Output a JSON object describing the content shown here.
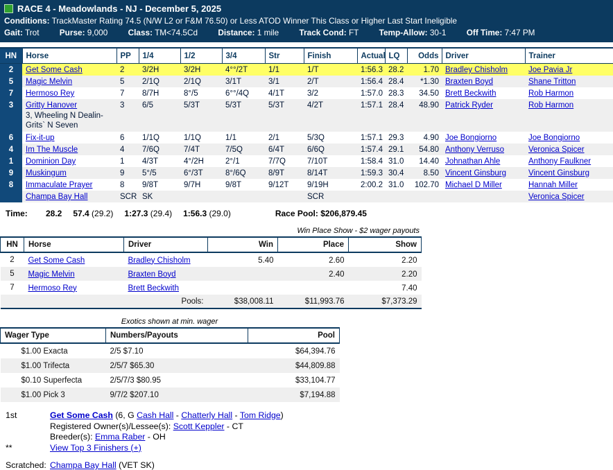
{
  "colors": {
    "banner_bg": "#0C3A5F",
    "hn_column_bg": "#11497A",
    "winner_highlight": "#FFFF66",
    "alt_row": "#EFEFEF",
    "link": "#0000CC",
    "race_icon_green": "#2FA12F"
  },
  "banner": {
    "title": "RACE 4 - Meadowlands - NJ - December 5, 2025",
    "conditions_label": "Conditions:",
    "conditions": "TrackMaster Rating 74.5 (N/W L2 or F&M 76.50) or Less ATOD Winner This Class or Higher Last Start Ineligible",
    "info": [
      {
        "label": "Gait:",
        "value": "Trot"
      },
      {
        "label": "Purse:",
        "value": "9,000"
      },
      {
        "label": "Class:",
        "value": "TM<74.5Cd"
      },
      {
        "label": "Distance:",
        "value": "1 mile"
      },
      {
        "label": "Track Cond:",
        "value": "FT"
      },
      {
        "label": "Temp-Allow:",
        "value": "30-1"
      },
      {
        "label": "Off Time:",
        "value": "7:47 PM"
      }
    ]
  },
  "results": {
    "headers": {
      "hn": "HN",
      "horse": "Horse",
      "pp": "PP",
      "q1": "1/4",
      "q2": "1/2",
      "q3": "3/4",
      "str": "Str",
      "finish": "Finish",
      "actual": "Actual",
      "lq": "LQ",
      "odds": "Odds",
      "driver": "Driver",
      "trainer": "Trainer"
    },
    "rows": [
      {
        "hn": "2",
        "horse": "Get Some Cash",
        "note": "",
        "pp": "2",
        "q1": "3/2H",
        "q2": "3/2H",
        "q3": "4°°/2T",
        "str": "1/1",
        "finish": "1/T",
        "actual": "1:56.3",
        "lq": "28.2",
        "odds": "1.70",
        "driver": "Bradley Chisholm",
        "trainer": "Joe Pavia Jr"
      },
      {
        "hn": "5",
        "horse": "Magic Melvin",
        "note": "",
        "pp": "5",
        "q1": "2/1Q",
        "q2": "2/1Q",
        "q3": "3/1T",
        "str": "3/1",
        "finish": "2/T",
        "actual": "1:56.4",
        "lq": "28.4",
        "odds": "*1.30",
        "driver": "Braxten Boyd",
        "trainer": "Shane Tritton"
      },
      {
        "hn": "7",
        "horse": "Hermoso Rey",
        "note": "",
        "pp": "7",
        "q1": "8/7H",
        "q2": "8°/5",
        "q3": "6°°/4Q",
        "str": "4/1T",
        "finish": "3/2",
        "actual": "1:57.0",
        "lq": "28.3",
        "odds": "34.50",
        "driver": "Brett Beckwith",
        "trainer": "Rob Harmon"
      },
      {
        "hn": "3",
        "horse": "Gritty Hanover",
        "note": "3, Wheeling N Dealin-Grits` N Seven",
        "pp": "3",
        "q1": "6/5",
        "q2": "5/3T",
        "q3": "5/3T",
        "str": "5/3T",
        "finish": "4/2T",
        "actual": "1:57.1",
        "lq": "28.4",
        "odds": "48.90",
        "driver": "Patrick Ryder",
        "trainer": "Rob Harmon"
      },
      {
        "hn": "6",
        "horse": "Fix-it-up",
        "note": "",
        "pp": "6",
        "q1": "1/1Q",
        "q2": "1/1Q",
        "q3": "1/1",
        "str": "2/1",
        "finish": "5/3Q",
        "actual": "1:57.1",
        "lq": "29.3",
        "odds": "4.90",
        "driver": "Joe Bongiorno",
        "trainer": "Joe Bongiorno"
      },
      {
        "hn": "4",
        "horse": "Im The Muscle",
        "note": "",
        "pp": "4",
        "q1": "7/6Q",
        "q2": "7/4T",
        "q3": "7/5Q",
        "str": "6/4T",
        "finish": "6/6Q",
        "actual": "1:57.4",
        "lq": "29.1",
        "odds": "54.80",
        "driver": "Anthony Verruso",
        "trainer": "Veronica Spicer"
      },
      {
        "hn": "1",
        "horse": "Dominion Day",
        "note": "",
        "pp": "1",
        "q1": "4/3T",
        "q2": "4°/2H",
        "q3": "2°/1",
        "str": "7/7Q",
        "finish": "7/10T",
        "actual": "1:58.4",
        "lq": "31.0",
        "odds": "14.40",
        "driver": "Johnathan Ahle",
        "trainer": "Anthony Faulkner"
      },
      {
        "hn": "9",
        "horse": "Muskingum",
        "note": "",
        "pp": "9",
        "q1": "5°/5",
        "q2": "6°/3T",
        "q3": "8°/6Q",
        "str": "8/9T",
        "finish": "8/14T",
        "actual": "1:59.3",
        "lq": "30.4",
        "odds": "8.50",
        "driver": "Vincent Ginsburg",
        "trainer": "Vincent Ginsburg"
      },
      {
        "hn": "8",
        "horse": "Immaculate Prayer",
        "note": "",
        "pp": "8",
        "q1": "9/8T",
        "q2": "9/7H",
        "q3": "9/8T",
        "str": "9/12T",
        "finish": "9/19H",
        "actual": "2:00.2",
        "lq": "31.0",
        "odds": "102.70",
        "driver": "Michael D Miller",
        "trainer": "Hannah Miller"
      },
      {
        "hn": "",
        "horse": "Champa Bay Hall",
        "note": "",
        "pp": "SCR",
        "q1": "SK",
        "q2": "",
        "q3": "",
        "str": "",
        "finish": "SCR",
        "actual": "",
        "lq": "",
        "odds": "",
        "driver": "",
        "trainer": "Veronica Spicer"
      }
    ]
  },
  "time_line": {
    "label": "Time:",
    "fractions": [
      {
        "t": "28.2",
        "s": ""
      },
      {
        "t": "57.4",
        "s": " (29.2)"
      },
      {
        "t": "1:27.3",
        "s": " (29.4)"
      },
      {
        "t": "1:56.3",
        "s": " (29.0)"
      }
    ],
    "pool": "Race Pool: $206,879.45"
  },
  "wps": {
    "caption": "Win Place Show - $2 wager payouts",
    "headers": {
      "hn": "HN",
      "horse": "Horse",
      "driver": "Driver",
      "win": "Win",
      "place": "Place",
      "show": "Show"
    },
    "rows": [
      {
        "hn": "2",
        "horse": "Get Some Cash",
        "driver": "Bradley Chisholm",
        "win": "5.40",
        "place": "2.60",
        "show": "2.20"
      },
      {
        "hn": "5",
        "horse": "Magic Melvin",
        "driver": "Braxten Boyd",
        "win": "",
        "place": "2.40",
        "show": "2.20"
      },
      {
        "hn": "7",
        "horse": "Hermoso Rey",
        "driver": "Brett Beckwith",
        "win": "",
        "place": "",
        "show": "7.40"
      }
    ],
    "pools": {
      "label": "Pools:",
      "win": "$38,008.11",
      "place": "$11,993.76",
      "show": "$7,373.29"
    }
  },
  "exotics": {
    "caption": "Exotics shown at min. wager",
    "headers": {
      "wager": "Wager Type",
      "numbers": "Numbers/Payouts",
      "pool": "Pool"
    },
    "rows": [
      {
        "wager": "$1.00 Exacta",
        "numbers": "2/5 $7.10",
        "pool": "$64,394.76"
      },
      {
        "wager": "$1.00 Trifecta",
        "numbers": "2/5/7 $65.30",
        "pool": "$44,809.88"
      },
      {
        "wager": "$0.10 Superfecta",
        "numbers": "2/5/7/3 $80.95",
        "pool": "$33,104.77"
      },
      {
        "wager": "$1.00 Pick 3",
        "numbers": "9/7/2 $207.10",
        "pool": "$7,194.88"
      }
    ]
  },
  "footer": {
    "place": "1st",
    "horse": "Get Some Cash",
    "pedigree": {
      "prefix": "(6, G",
      "sire": "Cash Hall",
      "sep1": " - ",
      "dam": "Chatterly Hall",
      "sep2": " - ",
      "damsire": "Tom Ridge",
      "suffix": ")"
    },
    "owner_label": "Registered Owner(s)/Lessee(s):",
    "owner": "Scott Keppler",
    "owner_suffix": " - CT",
    "breeder_label": "Breeder(s):",
    "breeder": "Emma Raber",
    "breeder_suffix": " - OH",
    "footnote_marker": "**",
    "view_link": "View Top 3 Finishers (+)"
  },
  "scratched": {
    "label": "Scratched:",
    "horse": "Champa Bay Hall",
    "reason": " (VET SK)"
  }
}
